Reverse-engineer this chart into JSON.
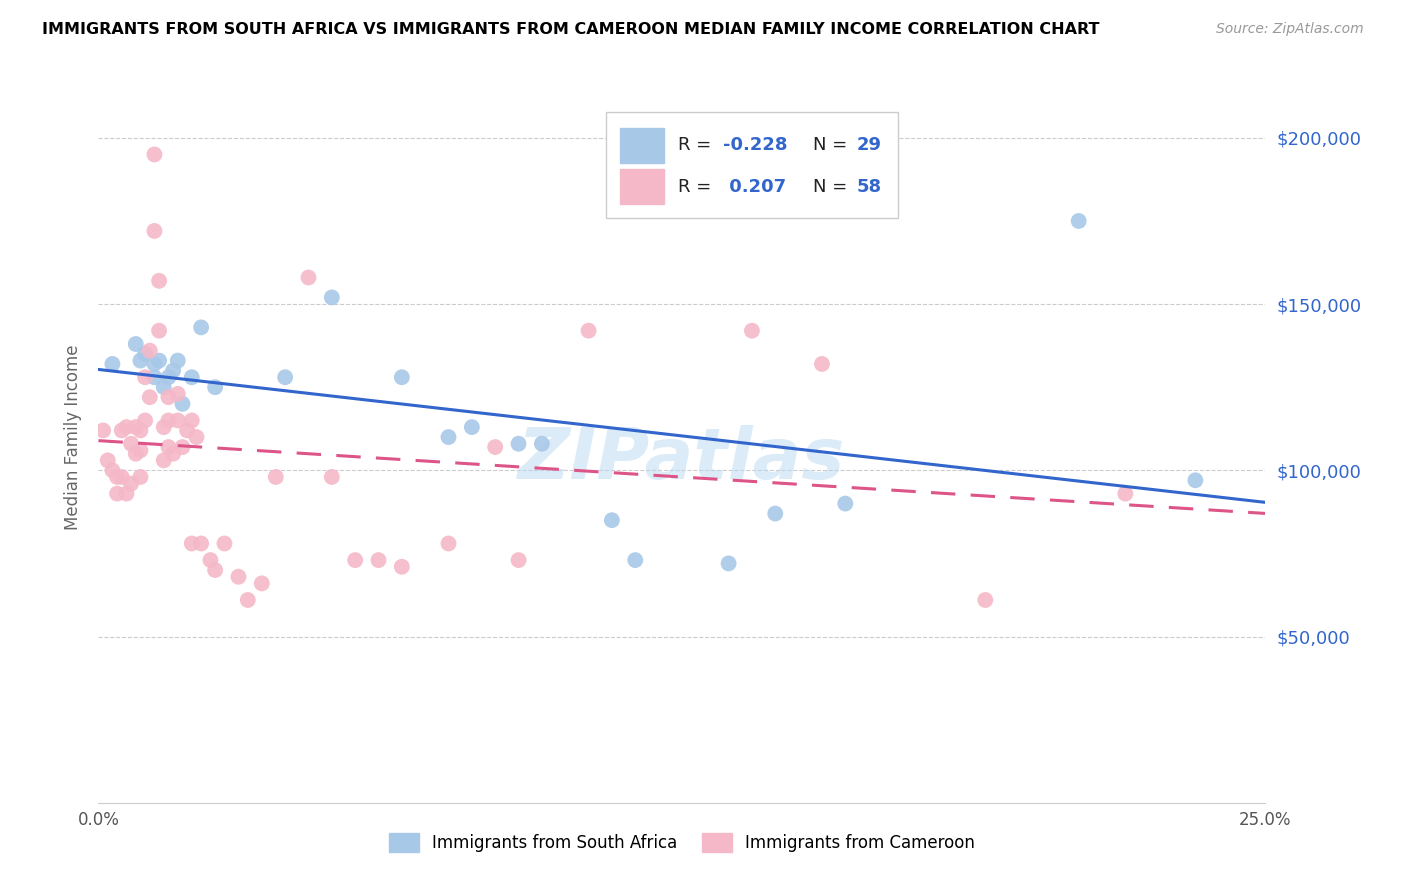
{
  "title": "IMMIGRANTS FROM SOUTH AFRICA VS IMMIGRANTS FROM CAMEROON MEDIAN FAMILY INCOME CORRELATION CHART",
  "source": "Source: ZipAtlas.com",
  "ylabel": "Median Family Income",
  "x_min": 0.0,
  "x_max": 0.25,
  "y_min": 0,
  "y_max": 220000,
  "y_ticks": [
    50000,
    100000,
    150000,
    200000
  ],
  "y_tick_labels": [
    "$50,000",
    "$100,000",
    "$150,000",
    "$200,000"
  ],
  "x_ticks": [
    0.0,
    0.05,
    0.1,
    0.15,
    0.2,
    0.25
  ],
  "x_tick_labels": [
    "0.0%",
    "",
    "",
    "",
    "",
    "25.0%"
  ],
  "color_blue": "#a8c8e8",
  "color_pink": "#f4b8c8",
  "color_blue_line": "#3366cc",
  "color_pink_line": "#dd5588",
  "color_ytick": "#3366cc",
  "watermark_text": "ZIPatlas",
  "watermark_color": "#b8d8f0",
  "legend_label1": "Immigrants from South Africa",
  "legend_label2": "Immigrants from Cameroon",
  "blue_x": [
    0.003,
    0.008,
    0.009,
    0.01,
    0.012,
    0.012,
    0.013,
    0.014,
    0.015,
    0.016,
    0.017,
    0.018,
    0.02,
    0.022,
    0.025,
    0.04,
    0.05,
    0.065,
    0.075,
    0.08,
    0.09,
    0.095,
    0.11,
    0.115,
    0.135,
    0.145,
    0.16,
    0.21,
    0.235
  ],
  "blue_y": [
    132000,
    138000,
    133000,
    135000,
    132000,
    128000,
    133000,
    125000,
    128000,
    130000,
    133000,
    120000,
    128000,
    143000,
    125000,
    128000,
    152000,
    128000,
    110000,
    113000,
    108000,
    108000,
    85000,
    73000,
    72000,
    87000,
    90000,
    175000,
    97000
  ],
  "pink_x": [
    0.001,
    0.002,
    0.003,
    0.004,
    0.004,
    0.005,
    0.005,
    0.006,
    0.006,
    0.007,
    0.007,
    0.008,
    0.008,
    0.009,
    0.009,
    0.009,
    0.01,
    0.01,
    0.011,
    0.011,
    0.012,
    0.012,
    0.013,
    0.013,
    0.014,
    0.014,
    0.015,
    0.015,
    0.015,
    0.016,
    0.017,
    0.017,
    0.018,
    0.019,
    0.02,
    0.02,
    0.021,
    0.022,
    0.024,
    0.025,
    0.027,
    0.03,
    0.032,
    0.035,
    0.038,
    0.045,
    0.05,
    0.055,
    0.06,
    0.065,
    0.075,
    0.085,
    0.09,
    0.105,
    0.14,
    0.155,
    0.19,
    0.22
  ],
  "pink_y": [
    112000,
    103000,
    100000,
    98000,
    93000,
    112000,
    98000,
    113000,
    93000,
    108000,
    96000,
    113000,
    105000,
    112000,
    106000,
    98000,
    128000,
    115000,
    136000,
    122000,
    195000,
    172000,
    157000,
    142000,
    113000,
    103000,
    122000,
    115000,
    107000,
    105000,
    123000,
    115000,
    107000,
    112000,
    78000,
    115000,
    110000,
    78000,
    73000,
    70000,
    78000,
    68000,
    61000,
    66000,
    98000,
    158000,
    98000,
    73000,
    73000,
    71000,
    78000,
    107000,
    73000,
    142000,
    142000,
    132000,
    61000,
    93000
  ]
}
